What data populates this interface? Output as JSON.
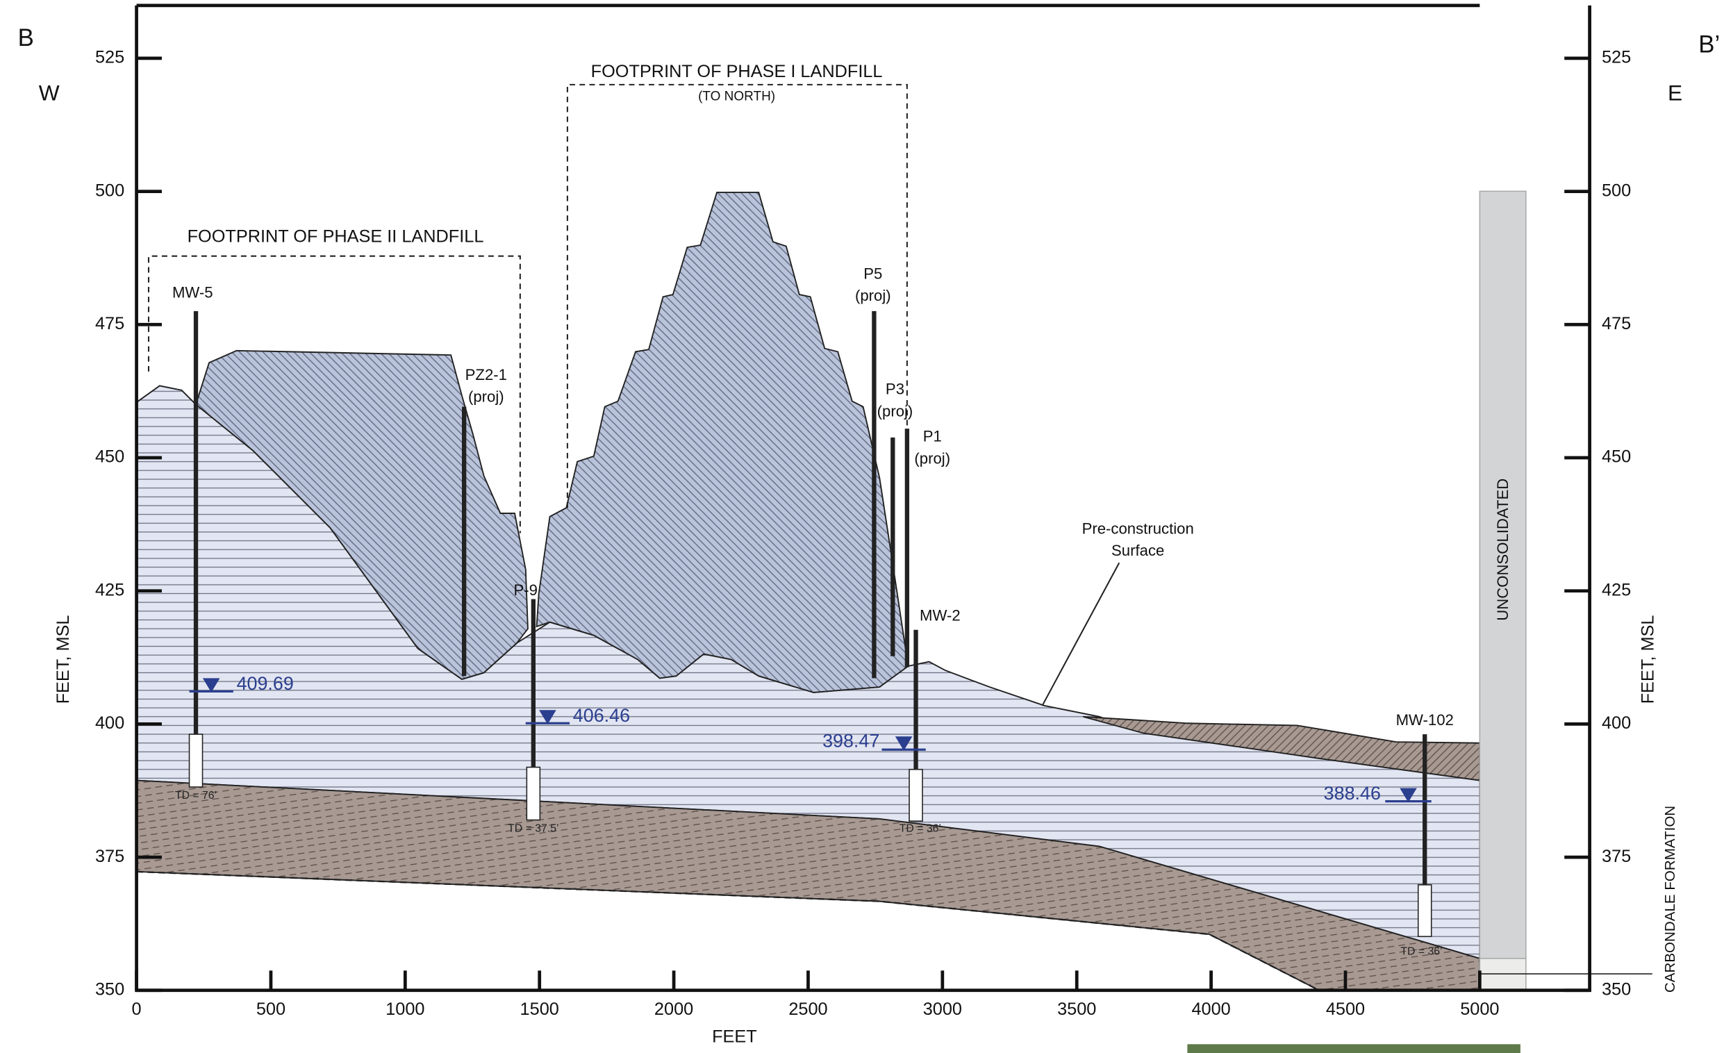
{
  "labels": {
    "section_start": "B",
    "section_end": "B’",
    "west": "W",
    "east": "E"
  },
  "axes": {
    "y_title": "FEET, MSL",
    "x_title": "FEET",
    "yticks": [
      350,
      375,
      400,
      425,
      450,
      475,
      500,
      525
    ],
    "xticks": [
      0,
      500,
      1000,
      1500,
      2000,
      2500,
      3000,
      3500,
      4000,
      4500,
      5000
    ]
  },
  "annotations": {
    "phase2": "FOOTPRINT OF PHASE II LANDFILL",
    "phase1": "FOOTPRINT OF PHASE I LANDFILL",
    "phase1_note": "(TO NORTH)",
    "pre_construction": [
      "Pre-construction",
      "Surface"
    ],
    "unconsolidated": "UNCONSOLIDATED",
    "carbondale": "CARBONDALE FORMATION"
  },
  "wells": [
    {
      "name": "MW-5",
      "water_level": "409.69",
      "td": "TD = 76’"
    },
    {
      "name": "P-9",
      "water_level": "406.46",
      "td": "TD = 37.5’"
    },
    {
      "name": "MW-2",
      "water_level": "398.47",
      "td": "TD = 36’"
    },
    {
      "name": "MW-102",
      "water_level": "388.46",
      "td": "TD = 36’"
    }
  ],
  "piezometers": [
    {
      "name": "PZ2-1",
      "note": "(proj)"
    },
    {
      "name": "P5",
      "note": "(proj)"
    },
    {
      "name": "P3",
      "note": "(proj)"
    },
    {
      "name": "P1",
      "note": "(proj)"
    }
  ]
}
